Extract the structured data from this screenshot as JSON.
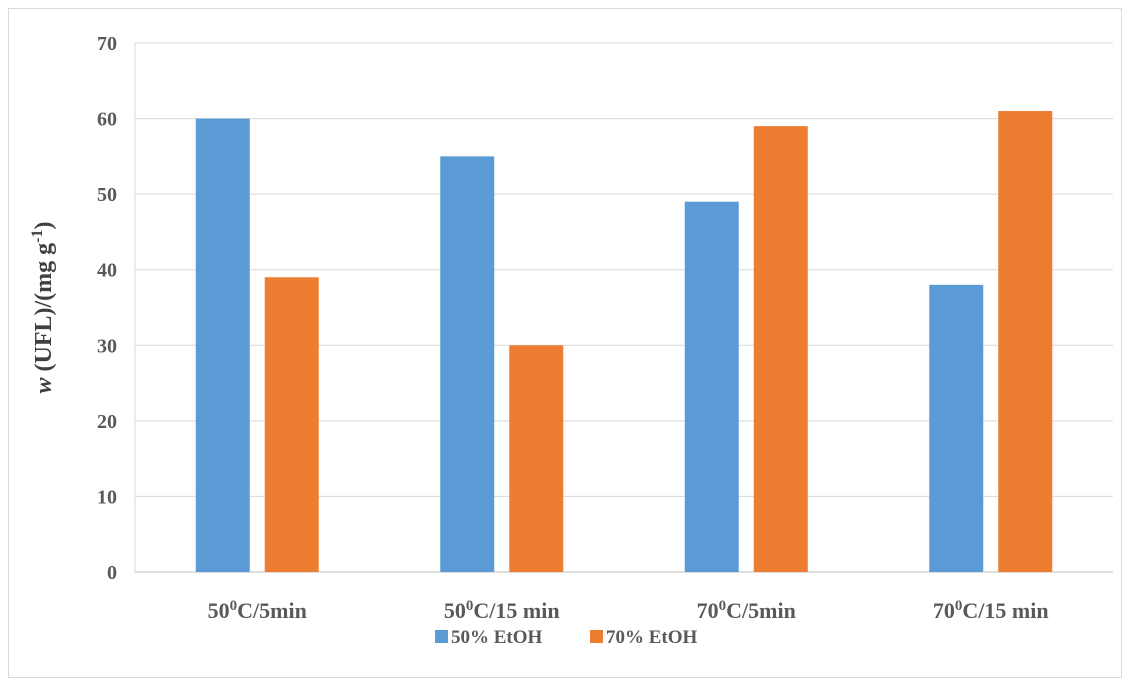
{
  "chart_data": {
    "type": "bar",
    "title": "",
    "categories": [
      {
        "base": "50",
        "sup": "0",
        "rest": "C/5min"
      },
      {
        "base": "50",
        "sup": "0",
        "rest": "C/15 min"
      },
      {
        "base": "70",
        "sup": "0",
        "rest": "C/5min"
      },
      {
        "base": "70",
        "sup": "0",
        "rest": "C/15 min"
      }
    ],
    "series": [
      {
        "name": "50% EtOH",
        "color": "#5b9bd5",
        "values": [
          60,
          55,
          49,
          38
        ]
      },
      {
        "name": "70% EtOH",
        "color": "#ed7d31",
        "values": [
          39,
          30,
          59,
          61
        ]
      }
    ],
    "ylabel": {
      "italic": "w",
      "main": " (UFL)/(mg g",
      "sup": "-1",
      "close": ")"
    },
    "ylim": [
      0,
      70
    ],
    "yticks": [
      0,
      10,
      20,
      30,
      40,
      50,
      60,
      70
    ],
    "grid": true,
    "legend_position": "bottom"
  }
}
